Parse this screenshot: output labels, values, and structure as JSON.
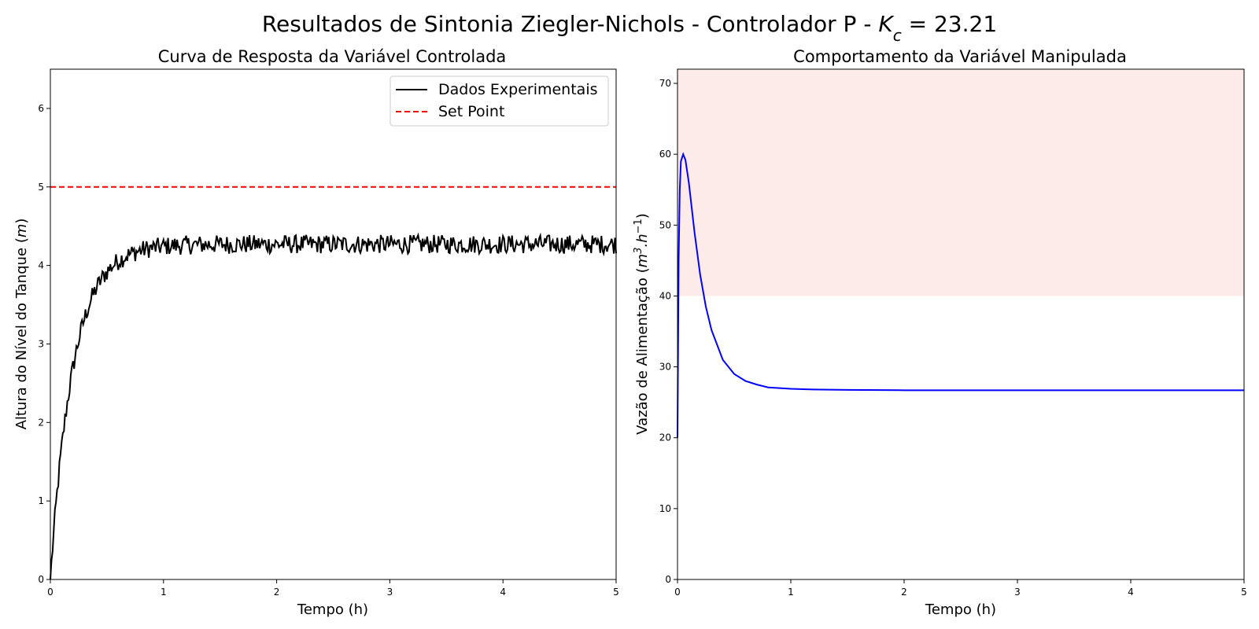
{
  "figure": {
    "title_prefix": "Resultados de Sintonia Ziegler-Nichols - Controlador P - ",
    "title_symbol": "K",
    "title_subscript": "c",
    "title_suffix": " = 23.21"
  },
  "chart_data": [
    {
      "type": "line",
      "title": "Curva de Resposta da Variável Controlada",
      "xlabel": "Tempo (h)",
      "ylabel_prefix": "Altura do Nível do Tanque (",
      "ylabel_math": "m",
      "ylabel_suffix": ")",
      "xlim": [
        0,
        5
      ],
      "ylim": [
        0,
        6.5
      ],
      "xticks": [
        0,
        1,
        2,
        3,
        4,
        5
      ],
      "yticks": [
        0,
        1,
        2,
        3,
        4,
        5,
        6
      ],
      "grid": false,
      "legend": "top-right",
      "series": [
        {
          "name": "Dados Experimentais",
          "color": "#000000",
          "style": "solid",
          "model": {
            "kind": "first_order",
            "start": 0,
            "final": 4.27,
            "tau": 0.2,
            "noise_amplitude": 0.12
          },
          "x": [
            0,
            0.05,
            0.1,
            0.15,
            0.2,
            0.25,
            0.3,
            0.4,
            0.5,
            0.6,
            0.8,
            1,
            1.5,
            2,
            2.5,
            3,
            3.5,
            4,
            4.5,
            5
          ],
          "y": [
            0,
            0.8,
            1.6,
            2.2,
            2.7,
            3.05,
            3.4,
            3.8,
            4.05,
            4.15,
            4.25,
            4.27,
            4.28,
            4.27,
            4.27,
            4.27,
            4.27,
            4.27,
            4.27,
            4.27
          ]
        },
        {
          "name": "Set Point",
          "color": "#ff0000",
          "style": "dashed",
          "x": [
            0,
            5
          ],
          "y": [
            5,
            5
          ]
        }
      ]
    },
    {
      "type": "line",
      "title": "Comportamento da Variável Manipulada",
      "xlabel": "Tempo (h)",
      "ylabel_prefix": "Vazão de Alimentação (",
      "ylabel_math": "m",
      "ylabel_sup1": "3",
      "ylabel_mid": ".h",
      "ylabel_sup2": "−1",
      "ylabel_suffix": ")",
      "xlim": [
        0,
        5
      ],
      "ylim": [
        0,
        72
      ],
      "xticks": [
        0,
        1,
        2,
        3,
        4,
        5
      ],
      "yticks": [
        0,
        10,
        20,
        30,
        40,
        50,
        60,
        70
      ],
      "grid": false,
      "shaded_region": {
        "y_from": 40,
        "y_to": 72,
        "color": "#fdebe9"
      },
      "series": [
        {
          "color": "#0000ff",
          "style": "solid",
          "x": [
            0,
            0.01,
            0.02,
            0.03,
            0.05,
            0.07,
            0.1,
            0.15,
            0.2,
            0.25,
            0.3,
            0.4,
            0.5,
            0.6,
            0.7,
            0.8,
            1,
            1.2,
            1.5,
            2,
            3,
            4,
            5
          ],
          "y": [
            20,
            45,
            55,
            59,
            60,
            59.2,
            56,
            49,
            43,
            38.5,
            35.2,
            31,
            29,
            28,
            27.5,
            27.1,
            26.9,
            26.8,
            26.75,
            26.7,
            26.7,
            26.7,
            26.7
          ]
        }
      ]
    }
  ]
}
